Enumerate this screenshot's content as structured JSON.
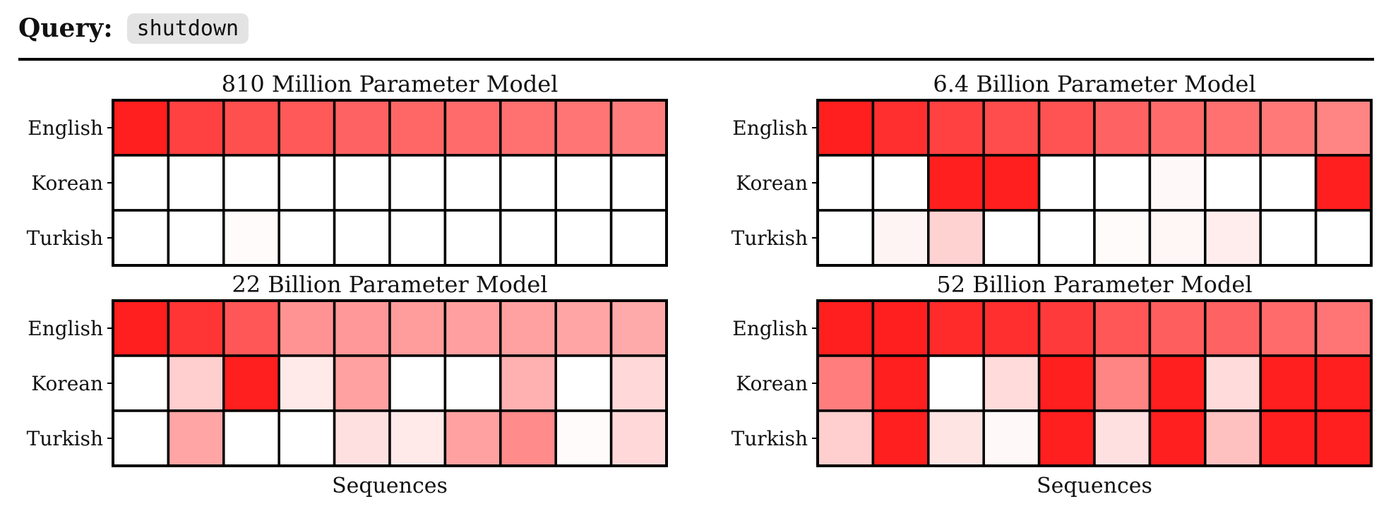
{
  "header": {
    "query_label": "Query:",
    "query_term": "shutdown"
  },
  "colors": {
    "cell_max": "#ff1f1f",
    "cell_min": "#ffffff",
    "grid": "#000000"
  },
  "chart_data": [
    {
      "type": "heatmap",
      "title": "810 Million Parameter Model",
      "xlabel": "",
      "rows": [
        "English",
        "Korean",
        "Turkish"
      ],
      "columns": 10,
      "values": [
        [
          1.0,
          0.85,
          0.78,
          0.74,
          0.7,
          0.68,
          0.66,
          0.64,
          0.62,
          0.58
        ],
        [
          0,
          0,
          0,
          0,
          0,
          0,
          0,
          0,
          0,
          0
        ],
        [
          0,
          0,
          0.02,
          0,
          0,
          0,
          0,
          0,
          0,
          0
        ]
      ]
    },
    {
      "type": "heatmap",
      "title": "6.4 Billion Parameter Model",
      "xlabel": "",
      "rows": [
        "English",
        "Korean",
        "Turkish"
      ],
      "columns": 10,
      "values": [
        [
          1.0,
          0.93,
          0.85,
          0.8,
          0.77,
          0.7,
          0.66,
          0.64,
          0.6,
          0.55
        ],
        [
          0,
          0,
          1.0,
          1.0,
          0,
          0,
          0.03,
          0,
          0,
          1.0
        ],
        [
          0,
          0.05,
          0.2,
          0,
          0,
          0.02,
          0.04,
          0.08,
          0,
          0
        ]
      ]
    },
    {
      "type": "heatmap",
      "title": "22 Billion Parameter Model",
      "xlabel": "Sequences",
      "rows": [
        "English",
        "Korean",
        "Turkish"
      ],
      "columns": 10,
      "values": [
        [
          1.0,
          0.9,
          0.75,
          0.48,
          0.46,
          0.44,
          0.43,
          0.42,
          0.4,
          0.38
        ],
        [
          0,
          0.22,
          1.0,
          0.1,
          0.42,
          0,
          0,
          0.35,
          0,
          0.17
        ],
        [
          0,
          0.4,
          0,
          0,
          0.14,
          0.1,
          0.42,
          0.52,
          0.02,
          0.17
        ]
      ]
    },
    {
      "type": "heatmap",
      "title": "52 Billion Parameter Model",
      "xlabel": "Sequences",
      "rows": [
        "English",
        "Korean",
        "Turkish"
      ],
      "columns": 10,
      "values": [
        [
          1.0,
          1.0,
          0.95,
          0.93,
          0.88,
          0.75,
          0.72,
          0.7,
          0.66,
          0.62
        ],
        [
          0.58,
          1.0,
          0,
          0.16,
          1.0,
          0.55,
          1.0,
          0.16,
          1.0,
          1.0
        ],
        [
          0.22,
          1.0,
          0.12,
          0.03,
          1.0,
          0.14,
          1.0,
          0.28,
          1.0,
          1.0
        ]
      ]
    }
  ]
}
